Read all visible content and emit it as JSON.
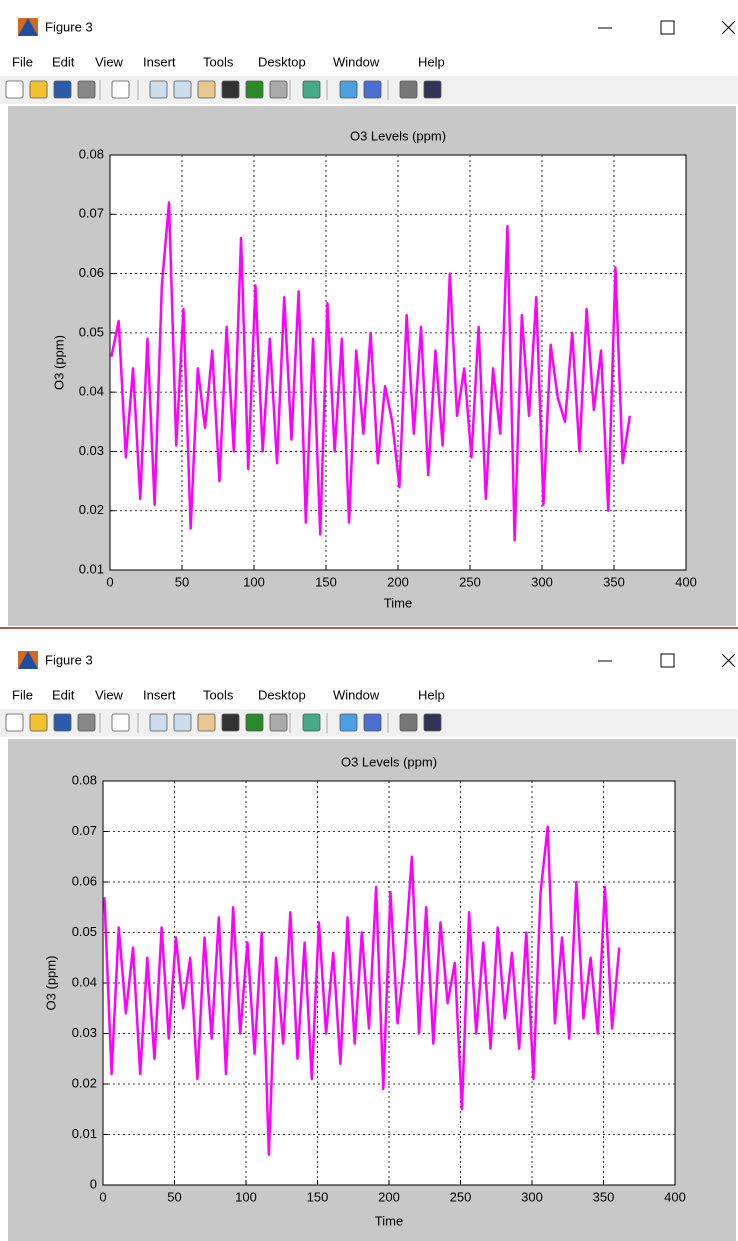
{
  "windows": [
    {
      "title": "Figure 3",
      "menu": [
        "File",
        "Edit",
        "View",
        "Insert",
        "Tools",
        "Desktop",
        "Window",
        "Help"
      ]
    },
    {
      "title": "Figure 3",
      "menu": [
        "File",
        "Edit",
        "View",
        "Insert",
        "Tools",
        "Desktop",
        "Window",
        "Help"
      ]
    }
  ],
  "chart_data": [
    {
      "type": "line",
      "title": "O3 Levels (ppm)",
      "x_label": "Time",
      "y_label": "O3 (ppm)",
      "color": "#ff00ff",
      "grid": true,
      "xlim": [
        0,
        400
      ],
      "xticks": [
        0,
        50,
        100,
        150,
        200,
        250,
        300,
        350,
        400
      ],
      "ylim": [
        0.01,
        0.08
      ],
      "yticks": [
        0.01,
        0.02,
        0.03,
        0.04,
        0.05,
        0.06,
        0.07,
        0.08
      ],
      "x": [
        1,
        6,
        11,
        16,
        21,
        26,
        31,
        36,
        41,
        46,
        51,
        56,
        61,
        66,
        71,
        76,
        81,
        86,
        91,
        96,
        101,
        106,
        111,
        116,
        121,
        126,
        131,
        136,
        141,
        146,
        151,
        156,
        161,
        166,
        171,
        176,
        181,
        186,
        191,
        196,
        201,
        206,
        211,
        216,
        221,
        226,
        231,
        236,
        241,
        246,
        251,
        256,
        261,
        266,
        271,
        276,
        281,
        286,
        291,
        296,
        301,
        306,
        311,
        316,
        321,
        326,
        331,
        336,
        341,
        346,
        351,
        356,
        361
      ],
      "values": [
        0.046,
        0.052,
        0.029,
        0.044,
        0.022,
        0.049,
        0.021,
        0.058,
        0.072,
        0.031,
        0.054,
        0.017,
        0.044,
        0.034,
        0.047,
        0.025,
        0.051,
        0.03,
        0.066,
        0.027,
        0.058,
        0.03,
        0.049,
        0.028,
        0.056,
        0.032,
        0.057,
        0.018,
        0.049,
        0.016,
        0.055,
        0.03,
        0.049,
        0.018,
        0.047,
        0.033,
        0.05,
        0.028,
        0.041,
        0.035,
        0.024,
        0.053,
        0.033,
        0.051,
        0.026,
        0.047,
        0.031,
        0.06,
        0.036,
        0.044,
        0.029,
        0.051,
        0.022,
        0.044,
        0.033,
        0.068,
        0.015,
        0.053,
        0.036,
        0.056,
        0.021,
        0.048,
        0.039,
        0.035,
        0.05,
        0.03,
        0.054,
        0.037,
        0.047,
        0.02,
        0.061,
        0.028,
        0.036
      ]
    },
    {
      "type": "line",
      "title": "O3 Levels (ppm)",
      "x_label": "Time",
      "y_label": "O3 (ppm)",
      "color": "#ff00ff",
      "grid": true,
      "xlim": [
        0,
        400
      ],
      "xticks": [
        0,
        50,
        100,
        150,
        200,
        250,
        300,
        350,
        400
      ],
      "ylim": [
        0,
        0.08
      ],
      "yticks": [
        0,
        0.01,
        0.02,
        0.03,
        0.04,
        0.05,
        0.06,
        0.07,
        0.08
      ],
      "x": [
        1,
        6,
        11,
        16,
        21,
        26,
        31,
        36,
        41,
        46,
        51,
        56,
        61,
        66,
        71,
        76,
        81,
        86,
        91,
        96,
        101,
        106,
        111,
        116,
        121,
        126,
        131,
        136,
        141,
        146,
        151,
        156,
        161,
        166,
        171,
        176,
        181,
        186,
        191,
        196,
        201,
        206,
        211,
        216,
        221,
        226,
        231,
        236,
        241,
        246,
        251,
        256,
        261,
        266,
        271,
        276,
        281,
        286,
        291,
        296,
        301,
        306,
        311,
        316,
        321,
        326,
        331,
        336,
        341,
        346,
        351,
        356,
        361
      ],
      "values": [
        0.057,
        0.022,
        0.051,
        0.034,
        0.047,
        0.022,
        0.045,
        0.025,
        0.051,
        0.029,
        0.049,
        0.035,
        0.045,
        0.021,
        0.049,
        0.029,
        0.053,
        0.022,
        0.055,
        0.03,
        0.048,
        0.026,
        0.05,
        0.006,
        0.045,
        0.028,
        0.054,
        0.025,
        0.048,
        0.021,
        0.052,
        0.03,
        0.046,
        0.024,
        0.053,
        0.028,
        0.05,
        0.031,
        0.059,
        0.019,
        0.058,
        0.032,
        0.045,
        0.065,
        0.03,
        0.055,
        0.028,
        0.052,
        0.036,
        0.044,
        0.015,
        0.054,
        0.03,
        0.048,
        0.027,
        0.051,
        0.033,
        0.046,
        0.027,
        0.05,
        0.021,
        0.058,
        0.071,
        0.032,
        0.049,
        0.029,
        0.06,
        0.033,
        0.045,
        0.03,
        0.059,
        0.031,
        0.047
      ]
    }
  ]
}
